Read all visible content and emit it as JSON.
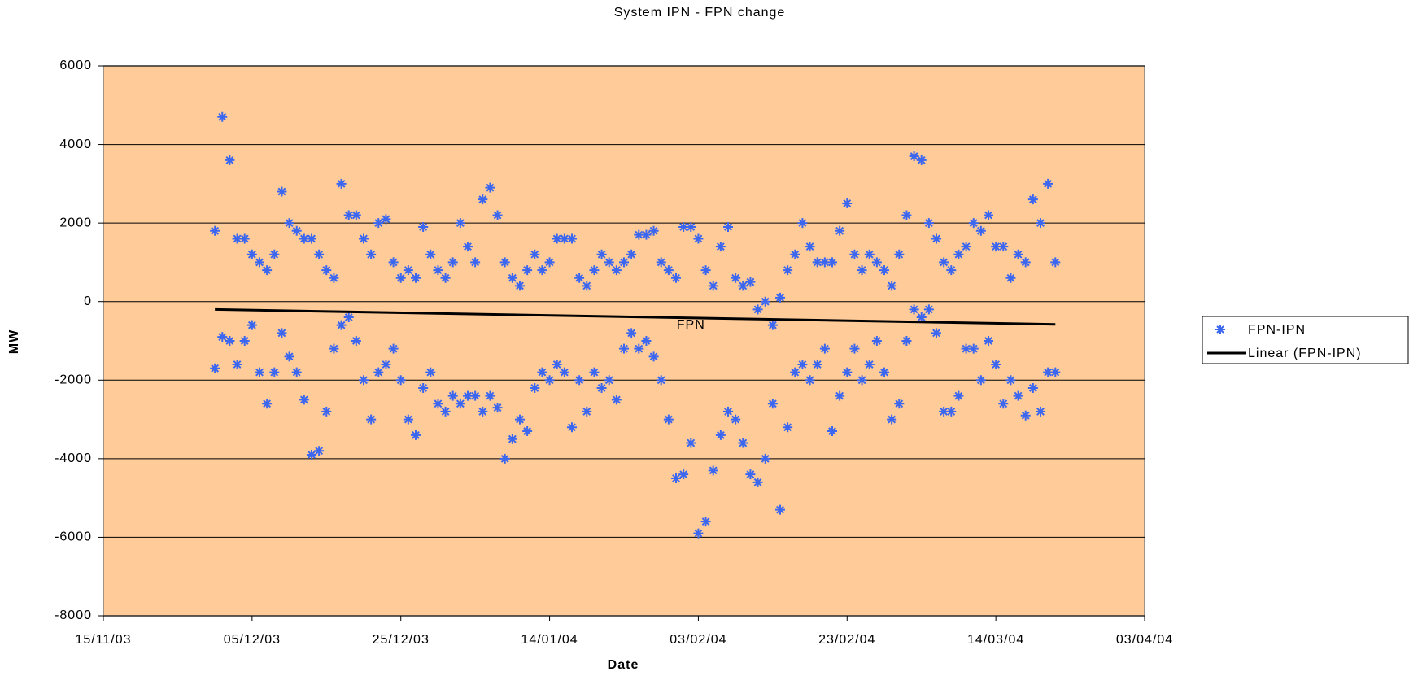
{
  "chart_data": {
    "type": "scatter",
    "title": "System IPN - FPN change",
    "xlabel": "Date",
    "ylabel": "MW",
    "xlim": [
      "2003-11-15",
      "2004-04-03"
    ],
    "xticks": [
      {
        "value": "2003-11-15",
        "label": "15/11/03"
      },
      {
        "value": "2003-12-05",
        "label": "05/12/03"
      },
      {
        "value": "2003-12-25",
        "label": "25/12/03"
      },
      {
        "value": "2004-01-14",
        "label": "14/01/04"
      },
      {
        "value": "2004-02-03",
        "label": "03/02/04"
      },
      {
        "value": "2004-02-23",
        "label": "23/02/04"
      },
      {
        "value": "2004-03-14",
        "label": "14/03/04"
      },
      {
        "value": "2004-04-03",
        "label": "03/04/04"
      }
    ],
    "ylim": [
      -8000,
      6000
    ],
    "yticks": [
      -8000,
      -6000,
      -4000,
      -2000,
      0,
      2000,
      4000,
      6000
    ],
    "grid": true,
    "annotations": [
      {
        "text": "FPN",
        "x": "2004-02-02",
        "y": -600
      }
    ],
    "series": [
      {
        "name": "FPN-IPN",
        "type": "scatter",
        "color": "#3a66f0",
        "x": [
          "2003-11-30",
          "2003-11-30",
          "2003-12-01",
          "2003-12-01",
          "2003-12-02",
          "2003-12-02",
          "2003-12-03",
          "2003-12-03",
          "2003-12-04",
          "2003-12-04",
          "2003-12-05",
          "2003-12-05",
          "2003-12-06",
          "2003-12-06",
          "2003-12-07",
          "2003-12-07",
          "2003-12-08",
          "2003-12-08",
          "2003-12-09",
          "2003-12-09",
          "2003-12-10",
          "2003-12-10",
          "2003-12-11",
          "2003-12-11",
          "2003-12-12",
          "2003-12-12",
          "2003-12-13",
          "2003-12-13",
          "2003-12-14",
          "2003-12-14",
          "2003-12-15",
          "2003-12-15",
          "2003-12-16",
          "2003-12-16",
          "2003-12-17",
          "2003-12-17",
          "2003-12-18",
          "2003-12-18",
          "2003-12-19",
          "2003-12-19",
          "2003-12-20",
          "2003-12-20",
          "2003-12-21",
          "2003-12-21",
          "2003-12-22",
          "2003-12-22",
          "2003-12-23",
          "2003-12-23",
          "2003-12-24",
          "2003-12-24",
          "2003-12-25",
          "2003-12-25",
          "2003-12-26",
          "2003-12-26",
          "2003-12-27",
          "2003-12-27",
          "2003-12-28",
          "2003-12-28",
          "2003-12-29",
          "2003-12-29",
          "2003-12-30",
          "2003-12-30",
          "2003-12-31",
          "2003-12-31",
          "2004-01-01",
          "2004-01-01",
          "2004-01-02",
          "2004-01-02",
          "2004-01-03",
          "2004-01-03",
          "2004-01-04",
          "2004-01-04",
          "2004-01-05",
          "2004-01-05",
          "2004-01-06",
          "2004-01-06",
          "2004-01-07",
          "2004-01-07",
          "2004-01-08",
          "2004-01-08",
          "2004-01-09",
          "2004-01-09",
          "2004-01-10",
          "2004-01-10",
          "2004-01-11",
          "2004-01-11",
          "2004-01-12",
          "2004-01-12",
          "2004-01-13",
          "2004-01-13",
          "2004-01-14",
          "2004-01-14",
          "2004-01-15",
          "2004-01-15",
          "2004-01-16",
          "2004-01-16",
          "2004-01-17",
          "2004-01-17",
          "2004-01-18",
          "2004-01-18",
          "2004-01-19",
          "2004-01-19",
          "2004-01-20",
          "2004-01-20",
          "2004-01-21",
          "2004-01-21",
          "2004-01-22",
          "2004-01-22",
          "2004-01-23",
          "2004-01-23",
          "2004-01-24",
          "2004-01-24",
          "2004-01-25",
          "2004-01-25",
          "2004-01-26",
          "2004-01-26",
          "2004-01-27",
          "2004-01-27",
          "2004-01-28",
          "2004-01-28",
          "2004-01-29",
          "2004-01-29",
          "2004-01-30",
          "2004-01-30",
          "2004-01-31",
          "2004-01-31",
          "2004-02-01",
          "2004-02-01",
          "2004-02-02",
          "2004-02-02",
          "2004-02-03",
          "2004-02-03",
          "2004-02-04",
          "2004-02-04",
          "2004-02-05",
          "2004-02-05",
          "2004-02-06",
          "2004-02-06",
          "2004-02-07",
          "2004-02-07",
          "2004-02-08",
          "2004-02-08",
          "2004-02-09",
          "2004-02-09",
          "2004-02-10",
          "2004-02-10",
          "2004-02-11",
          "2004-02-11",
          "2004-02-12",
          "2004-02-12",
          "2004-02-13",
          "2004-02-13",
          "2004-02-14",
          "2004-02-14",
          "2004-02-15",
          "2004-02-15",
          "2004-02-16",
          "2004-02-16",
          "2004-02-17",
          "2004-02-17",
          "2004-02-18",
          "2004-02-18",
          "2004-02-19",
          "2004-02-19",
          "2004-02-20",
          "2004-02-20",
          "2004-02-21",
          "2004-02-21",
          "2004-02-22",
          "2004-02-22",
          "2004-02-23",
          "2004-02-23",
          "2004-02-24",
          "2004-02-24",
          "2004-02-25",
          "2004-02-25",
          "2004-02-26",
          "2004-02-26",
          "2004-02-27",
          "2004-02-27",
          "2004-02-28",
          "2004-02-28",
          "2004-02-29",
          "2004-02-29",
          "2004-03-01",
          "2004-03-01",
          "2004-03-02",
          "2004-03-02",
          "2004-03-03",
          "2004-03-03",
          "2004-03-04",
          "2004-03-04",
          "2004-03-05",
          "2004-03-05",
          "2004-03-06",
          "2004-03-06",
          "2004-03-07",
          "2004-03-07",
          "2004-03-08",
          "2004-03-08",
          "2004-03-09",
          "2004-03-09",
          "2004-03-10",
          "2004-03-10",
          "2004-03-11",
          "2004-03-11",
          "2004-03-12",
          "2004-03-12",
          "2004-03-13",
          "2004-03-13",
          "2004-03-14",
          "2004-03-14",
          "2004-03-15",
          "2004-03-15",
          "2004-03-16",
          "2004-03-16",
          "2004-03-17",
          "2004-03-17",
          "2004-03-18",
          "2004-03-18",
          "2004-03-19",
          "2004-03-19",
          "2004-03-20",
          "2004-03-20",
          "2004-03-21",
          "2004-03-21",
          "2004-03-22",
          "2004-03-22"
        ],
        "values": [
          1800,
          -1700,
          4700,
          -900,
          3600,
          -1000,
          1600,
          -1600,
          1600,
          -1000,
          1200,
          -600,
          1000,
          -1800,
          800,
          -2600,
          1200,
          -1800,
          2800,
          -800,
          2000,
          -1400,
          1800,
          -1800,
          1600,
          -2500,
          1600,
          -3900,
          1200,
          -3800,
          800,
          -2800,
          600,
          -1200,
          3000,
          -600,
          2200,
          -400,
          2200,
          -1000,
          1600,
          -2000,
          1200,
          -3000,
          2000,
          -1800,
          2100,
          -1600,
          1000,
          -1200,
          600,
          -2000,
          800,
          -3000,
          600,
          -3400,
          1900,
          -2200,
          1200,
          -1800,
          800,
          -2600,
          600,
          -2800,
          1000,
          -2400,
          2000,
          -2600,
          1400,
          -2400,
          1000,
          -2400,
          2600,
          -2800,
          2900,
          -2400,
          2200,
          -2700,
          1000,
          -4000,
          600,
          -3500,
          400,
          -3000,
          800,
          -3300,
          1200,
          -2200,
          800,
          -1800,
          1000,
          -2000,
          1600,
          -1600,
          1600,
          -1800,
          1600,
          -3200,
          600,
          -2000,
          400,
          -2800,
          800,
          -1800,
          1200,
          -2200,
          1000,
          -2000,
          800,
          -2500,
          1000,
          -1200,
          1200,
          -800,
          1700,
          -1200,
          1700,
          -1000,
          1800,
          -1400,
          1000,
          -2000,
          800,
          -3000,
          600,
          -4500,
          1900,
          -4400,
          1900,
          -3600,
          1600,
          -5900,
          800,
          -5600,
          400,
          -4300,
          1400,
          -3400,
          1900,
          -2800,
          600,
          -3000,
          400,
          -3600,
          500,
          -4400,
          -200,
          -4600,
          0,
          -4000,
          -600,
          -2600,
          100,
          -5300,
          800,
          -3200,
          1200,
          -1800,
          2000,
          -1600,
          1400,
          -2000,
          1000,
          -1600,
          1000,
          -1200,
          1000,
          -3300,
          1800,
          -2400,
          2500,
          -1800,
          1200,
          -1200,
          800,
          -2000,
          1200,
          -1600,
          1000,
          -1000,
          800,
          -1800,
          400,
          -3000,
          1200,
          -2600,
          2200,
          -1000,
          3700,
          -200,
          3600,
          -400,
          2000,
          -200,
          1600,
          -800,
          1000,
          -2800,
          800,
          -2800,
          1200,
          -2400,
          1400,
          -1200,
          2000,
          -1200,
          1800,
          -2000,
          2200,
          -1000,
          1400,
          -1600,
          1400,
          -2600,
          600,
          -2000,
          1200,
          -2400,
          1000,
          -2900,
          2600,
          -2200,
          2000,
          -2800,
          3000,
          -1800,
          1000,
          -1800
        ]
      },
      {
        "name": "Linear (FPN-IPN)",
        "type": "line",
        "color": "#000000",
        "x": [
          "2003-11-30",
          "2004-03-22"
        ],
        "values": [
          -200,
          -580
        ]
      }
    ]
  }
}
